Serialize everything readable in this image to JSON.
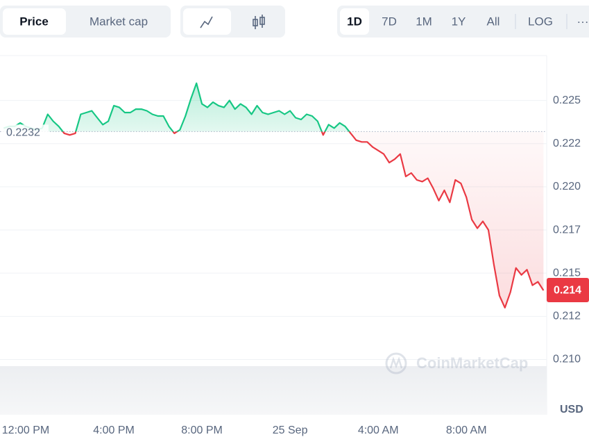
{
  "toolbar": {
    "tabs": [
      "Price",
      "Market cap"
    ],
    "ranges": [
      "1D",
      "7D",
      "1M",
      "1Y",
      "All",
      "LOG",
      "···"
    ]
  },
  "chart_data": {
    "type": "line",
    "categories": [
      null,
      null,
      null,
      null,
      "12:00 PM",
      null,
      null,
      null,
      null,
      null,
      null,
      null,
      null,
      null,
      null,
      null,
      null,
      null,
      null,
      null,
      "4:00 PM",
      null,
      null,
      null,
      null,
      null,
      null,
      null,
      null,
      null,
      null,
      null,
      null,
      null,
      null,
      null,
      "8:00 PM",
      null,
      null,
      null,
      null,
      null,
      null,
      null,
      null,
      null,
      null,
      null,
      null,
      null,
      null,
      null,
      "25 Sep",
      null,
      null,
      null,
      null,
      null,
      null,
      null,
      null,
      null,
      null,
      null,
      null,
      null,
      null,
      null,
      "4:00 AM",
      null,
      null,
      null,
      null,
      null,
      null,
      null,
      null,
      null,
      null,
      null,
      null,
      null,
      null,
      null,
      "8:00 AM",
      null,
      null,
      null,
      null,
      null,
      null,
      null,
      null,
      null,
      null,
      null,
      null,
      null,
      null
    ],
    "values": [
      0.2234,
      0.2235,
      0.2235,
      0.2237,
      0.2235,
      0.2234,
      0.2233,
      0.2234,
      0.2242,
      0.2238,
      0.2235,
      0.2231,
      0.223,
      0.2231,
      0.2242,
      0.2243,
      0.2244,
      0.224,
      0.2236,
      0.2238,
      0.2247,
      0.2246,
      0.2243,
      0.2243,
      0.2245,
      0.2245,
      0.2244,
      0.2242,
      0.2241,
      0.2241,
      0.2235,
      0.2231,
      0.2233,
      0.2241,
      0.2251,
      0.226,
      0.2248,
      0.2246,
      0.2249,
      0.2247,
      0.2246,
      0.225,
      0.2245,
      0.2248,
      0.2246,
      0.2242,
      0.2247,
      0.2243,
      0.2242,
      0.2243,
      0.2244,
      0.2242,
      0.2244,
      0.224,
      0.2239,
      0.2242,
      0.2241,
      0.2238,
      0.223,
      0.2236,
      0.2234,
      0.2237,
      0.2235,
      0.2231,
      0.2227,
      0.2226,
      0.2226,
      0.2223,
      0.2221,
      0.2219,
      0.2214,
      0.2216,
      0.2219,
      0.2206,
      0.2208,
      0.2204,
      0.2203,
      0.2205,
      0.2199,
      0.2192,
      0.2198,
      0.2191,
      0.2204,
      0.2202,
      0.2194,
      0.2181,
      0.2176,
      0.218,
      0.2175,
      0.2155,
      0.2137,
      0.213,
      0.2139,
      0.2153,
      0.2149,
      0.2152,
      0.2143,
      0.2145,
      0.214
    ],
    "baseline": 0.2232,
    "up_color": "#16c784",
    "down_color": "#ea3943",
    "ylim": [
      0.2068,
      0.2276
    ],
    "yticks": [
      {
        "value": 0.225,
        "label": "0.225"
      },
      {
        "value": 0.2225,
        "label": "0.222"
      },
      {
        "value": 0.22,
        "label": "0.220"
      },
      {
        "value": 0.2175,
        "label": "0.217"
      },
      {
        "value": 0.215,
        "label": "0.215"
      },
      {
        "value": 0.2125,
        "label": "0.212"
      },
      {
        "value": 0.21,
        "label": "0.210"
      }
    ],
    "y_unit": "USD",
    "grid": true,
    "watermark": "CoinMarketCap"
  }
}
